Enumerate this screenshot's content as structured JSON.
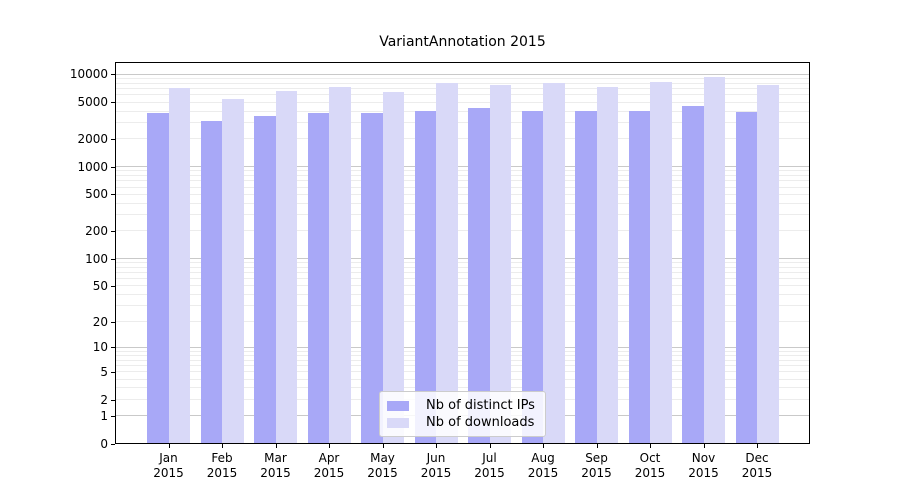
{
  "title": "VariantAnnotation 2015",
  "colors": {
    "distinct_ips": "#a8a8f7",
    "downloads": "#d9d9f8",
    "grid_major": "#c9c9c9",
    "grid_minor": "#ececec",
    "frame": "#000000"
  },
  "chart_data": {
    "type": "bar",
    "title": "VariantAnnotation 2015",
    "categories": [
      "Jan",
      "Feb",
      "Mar",
      "Apr",
      "May",
      "Jun",
      "Jul",
      "Aug",
      "Sep",
      "Oct",
      "Nov",
      "Dec"
    ],
    "year_label": "2015",
    "series": [
      {
        "name": "Nb of distinct IPs",
        "color": "#a8a8f7",
        "values": [
          3800,
          3100,
          3500,
          3800,
          3750,
          3950,
          4300,
          3950,
          4000,
          3950,
          4450,
          3900
        ]
      },
      {
        "name": "Nb of downloads",
        "color": "#d9d9f8",
        "values": [
          7000,
          5350,
          6500,
          7200,
          6400,
          8050,
          7600,
          8050,
          7250,
          8250,
          9300,
          7650
        ]
      }
    ],
    "yticks": [
      0,
      1,
      2,
      5,
      10,
      20,
      50,
      100,
      200,
      500,
      1000,
      2000,
      5000,
      10000
    ],
    "ylim": [
      0,
      14000
    ],
    "scale": "log1p",
    "grid": true,
    "legend_position": "lower center",
    "xlabel": "",
    "ylabel": ""
  }
}
